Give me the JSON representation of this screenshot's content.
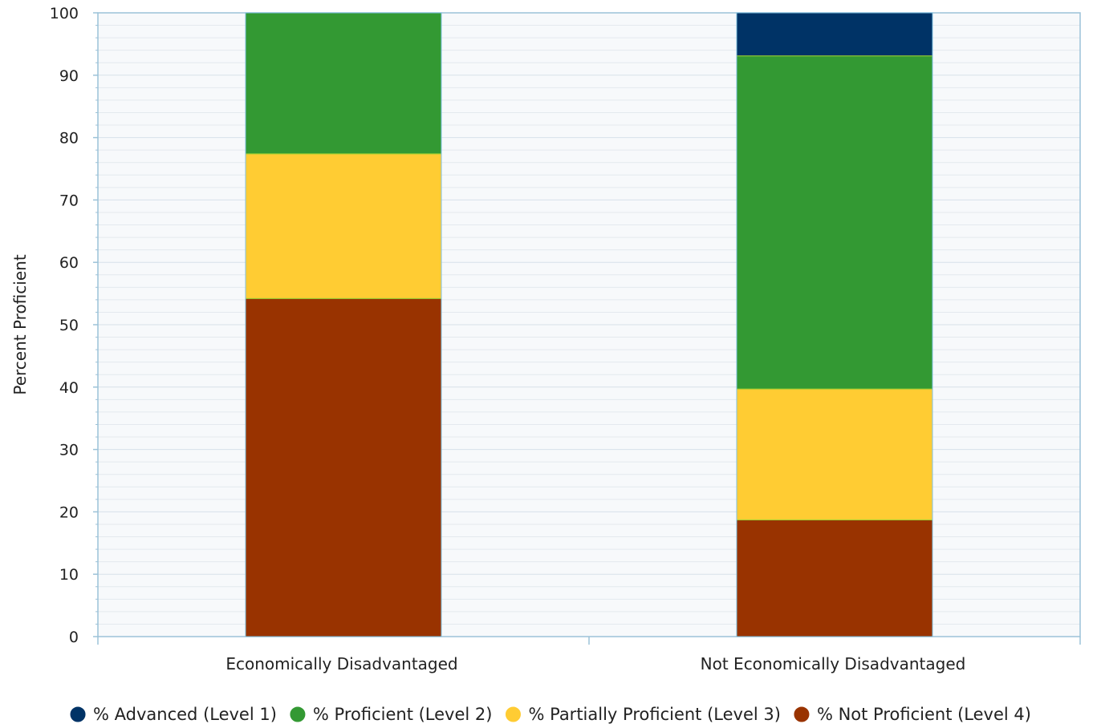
{
  "chart_data": {
    "type": "bar",
    "stacked": true,
    "categories": [
      "Economically Disadvantaged",
      "Not Economically Disadvantaged"
    ],
    "ylabel": "Percent Proficient",
    "xlabel": "",
    "ylim": [
      0,
      100
    ],
    "yticks": [
      0,
      10,
      20,
      30,
      40,
      50,
      60,
      70,
      80,
      90,
      100
    ],
    "grid": true,
    "legend_position": "bottom",
    "series": [
      {
        "name": "% Not Proficient (Level 4)",
        "color": "#993300",
        "values": [
          54.2,
          18.7
        ]
      },
      {
        "name": "% Partially Proficient (Level 3)",
        "color": "#FFCC33",
        "values": [
          23.2,
          21.0
        ]
      },
      {
        "name": "% Proficient (Level 2)",
        "color": "#339933",
        "values": [
          22.6,
          53.4
        ]
      },
      {
        "name": "% Advanced (Level 1)",
        "color": "#003366",
        "values": [
          0.0,
          6.9
        ]
      }
    ],
    "legend_order": [
      3,
      2,
      1,
      0
    ]
  }
}
